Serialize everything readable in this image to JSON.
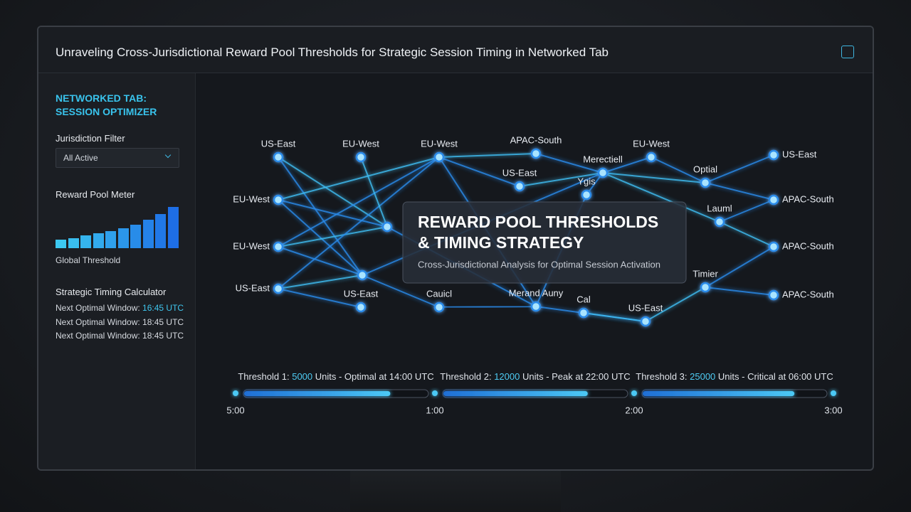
{
  "header": {
    "title": "Unraveling Cross-Jurisdictional Reward Pool Thresholds for Strategic Session Timing in Networked Tab"
  },
  "sidebar": {
    "app_title": [
      "NETWORKED TAB:",
      "SESSION OPTIMIZER"
    ],
    "filter": {
      "label": "Jurisdiction Filter",
      "selected": "All Active"
    },
    "meter": {
      "label": "Reward Pool Meter",
      "values": [
        12,
        14,
        18,
        21,
        24,
        28,
        33,
        40,
        48,
        58
      ],
      "caption": "Global Threshold"
    },
    "calculator": {
      "label": "Strategic Timing Calculator",
      "rows": [
        {
          "text": "Next Optimal Window:",
          "time": "16:45 UTC"
        },
        {
          "text": "Next Optimal Window:",
          "time": "18:45 UTC"
        },
        {
          "text": "Next Optimal Window:",
          "time": "18:45 UTC"
        }
      ]
    }
  },
  "network": {
    "nodes": [
      "US-East",
      "EU-West",
      "EU-West",
      "APAC-South",
      "EU-West",
      "US-East",
      "EU-West",
      "EU-West",
      "US-East",
      "US-East",
      "Cauicl",
      "Merand Auny",
      "Cal",
      "US-East",
      "Timier",
      "APAC-South",
      "APAC-South",
      "APAC-South",
      "Optial",
      "Merectiell",
      "US-East",
      "Ygis",
      "Lauml"
    ]
  },
  "overlay": {
    "title": [
      "REWARD POOL THRESHOLDS",
      "& TIMING STRATEGY"
    ],
    "subtitle": "Cross-Jurisdictional Analysis for Optimal Session Activation"
  },
  "thresholds": [
    {
      "prefix": "Threshold 1:",
      "amount": 5000,
      "suffix": "Units - Optimal at 14:00 UTC",
      "fill_percent": 79
    },
    {
      "prefix": "Threshold 2:",
      "amount": 12000,
      "suffix": "Units - Peak at 22:00 UTC",
      "fill_percent": 78
    },
    {
      "prefix": "Threshold 3:",
      "amount": 25000,
      "suffix": "Units - Critical at 06:00 UTC",
      "fill_percent": 82
    }
  ],
  "timeline": [
    "5:00",
    "1:00",
    "2:00",
    "3:00"
  ]
}
